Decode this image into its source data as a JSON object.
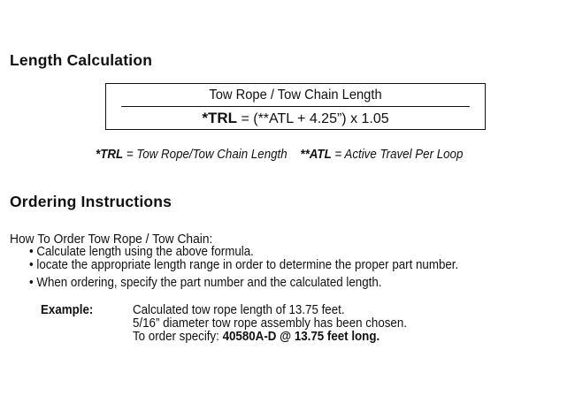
{
  "length_section": {
    "heading": "Length Calculation",
    "table": {
      "header": "Tow Rope / Tow Chain Length",
      "formula_lhs": "*TRL",
      "formula_rhs": " = (**ATL + 4.25”) x 1.05"
    },
    "legend": {
      "trl_abbr": "*TRL",
      "trl_def": " = Tow Rope/Tow Chain Length",
      "atl_abbr": "**ATL",
      "atl_def": " = Active Travel Per Loop"
    }
  },
  "ordering_section": {
    "heading": "Ordering Instructions",
    "subheading": "How To Order Tow Rope / Tow Chain:",
    "bullets": [
      "Calculate length using the above formula.",
      "locate the appropriate length range in order to determine the  proper part number.",
      "When ordering, specify the part number and the calculated length."
    ],
    "example": {
      "label": "Example:",
      "line1": "Calculated tow rope length of 13.75 feet.",
      "line2": "5/16” diameter tow rope assembly has been chosen.",
      "line3_prefix": "To order specify: ",
      "line3_bold": "40580A-D @ 13.75 feet long."
    }
  }
}
